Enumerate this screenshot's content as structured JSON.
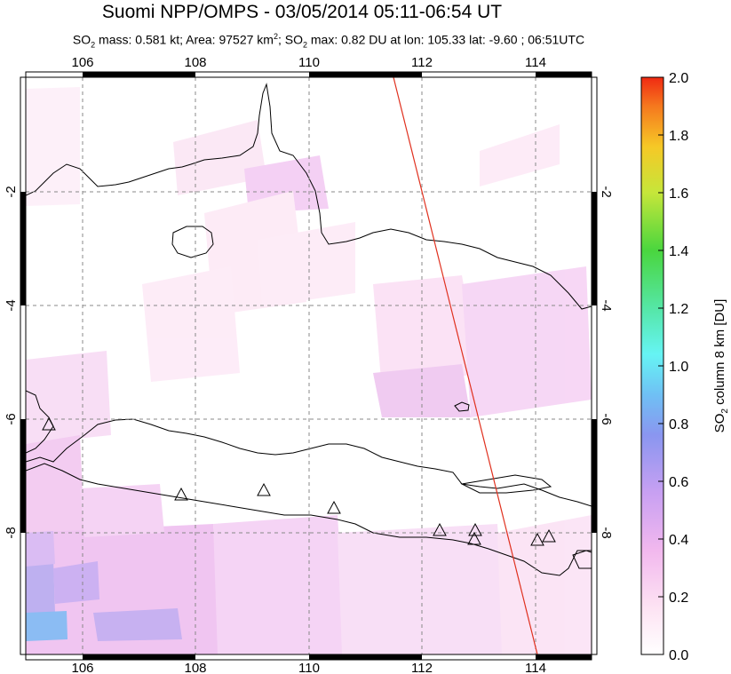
{
  "title": "Suomi NPP/OMPS - 03/05/2014 05:11-06:54 UT",
  "subtitle": {
    "so2_mass_prefix": "SO",
    "so2_mass_text": " mass: 0.581 kt; Area: 97527 km",
    "area_sup": "2",
    "so2_max_prefix": "; SO",
    "so2_max_text": " max: 0.82 DU at lon: 105.33 lat: -9.60 ; 06:51UTC",
    "sub2": "2"
  },
  "map": {
    "lon_ticks": [
      "106",
      "108",
      "110",
      "112",
      "114"
    ],
    "lat_ticks_left": [
      "-2",
      "-4",
      "-6",
      "-8"
    ],
    "lat_ticks_right": [
      "-2",
      "-4",
      "-6",
      "-8"
    ],
    "lon_range": [
      105,
      115
    ],
    "lat_range": [
      -10,
      -0.5
    ],
    "volcano_marker": "triangle-icon",
    "orbit_line_color": "#e0301e"
  },
  "colorbar": {
    "ticks": [
      "2.0",
      "1.8",
      "1.6",
      "1.4",
      "1.2",
      "1.0",
      "0.8",
      "0.6",
      "0.4",
      "0.2",
      "0.0"
    ],
    "label": "SO2 column 8 km [DU]",
    "label_main": "SO",
    "label_sub": "2",
    "label_rest": " column 8 km [DU]",
    "range": [
      0,
      2.0
    ]
  }
}
